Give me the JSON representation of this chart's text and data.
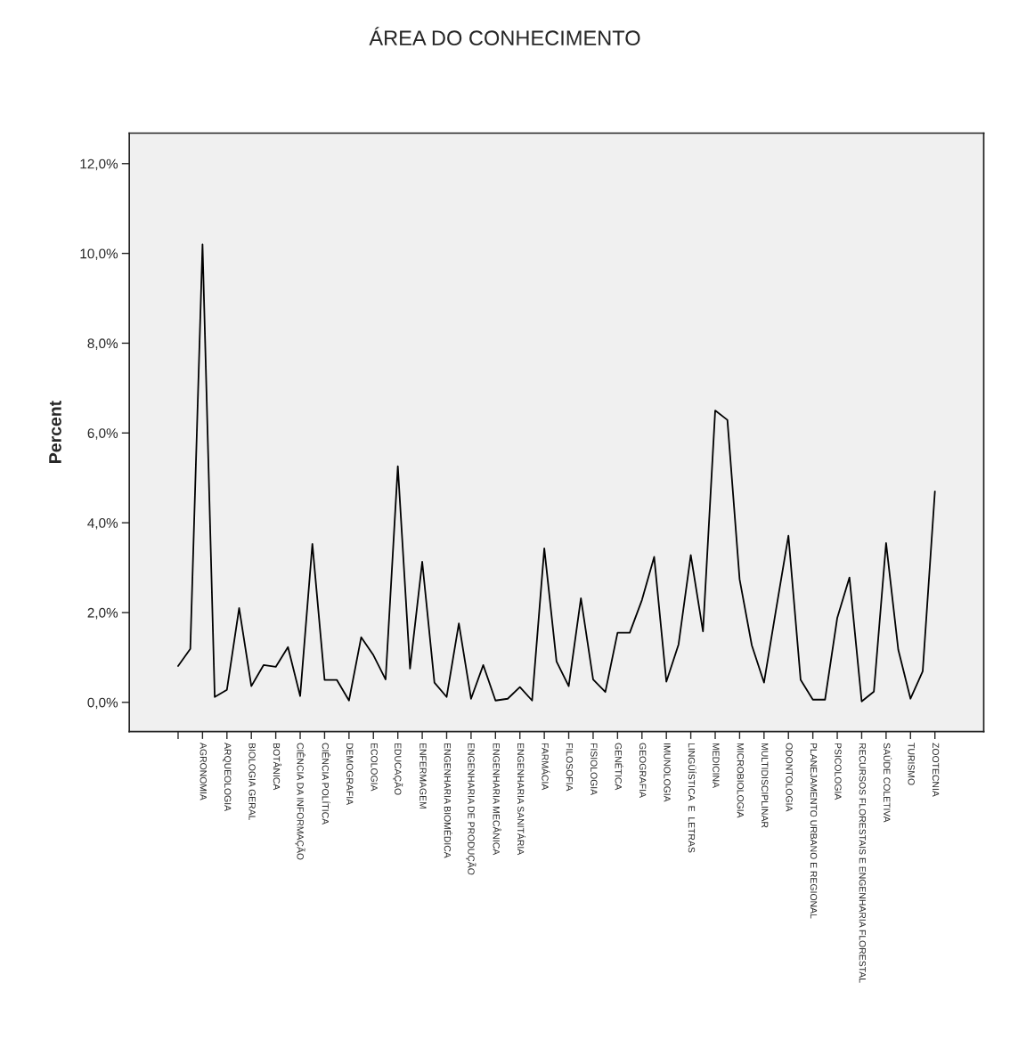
{
  "chart_data": {
    "type": "line",
    "title": "ÁREA DO CONHECIMENTO",
    "ylabel": "Percent",
    "categories": [
      null,
      null,
      "AGRONOMIA",
      null,
      "ARQUEOLOGIA",
      null,
      "BIOLOGIA GERAL",
      null,
      "BOTÂNICA",
      null,
      "CIÊNCIA DA INFORMAÇÃO",
      null,
      "CIÊNCIA POLÍTICA",
      null,
      "DEMOGRAFIA",
      null,
      "ECOLOGIA",
      null,
      "EDUCAÇÃO",
      null,
      "ENFERMAGEM",
      null,
      "ENGENHARIA BIOMÉDICA",
      null,
      "ENGENHARIA DE PRODUÇÃO",
      null,
      "ENGENHARIA MECÂNICA",
      null,
      "ENGENHARIA SANITÁRIA",
      null,
      "FARMÁCIA",
      null,
      "FILOSOFIA",
      null,
      "FISIOLOGIA",
      null,
      "GENÉTICA",
      null,
      "GEOGRAFIA",
      null,
      "IMUNOLOGIA",
      null,
      "LINGÜÍSTICA  E  LETRAS",
      null,
      "MEDICINA",
      null,
      "MICROBIOLOGIA",
      null,
      "MULTIDISCIPLINAR",
      null,
      "ODONTOLOGIA",
      null,
      "PLANEJAMENTO URBANO E REGIONAL",
      null,
      "PSICOLOGIA",
      null,
      "RECURSOS FLORESTAIS E ENGENHARIA FLORESTAL",
      null,
      "SAÚDE COLETIVA",
      null,
      "TURISMO",
      null,
      "ZOOTECNIA"
    ],
    "series": [
      {
        "color": "#000000",
        "values": [
          0.81,
          1.19,
          10.2,
          0.12,
          0.28,
          2.1,
          0.36,
          0.83,
          0.79,
          1.23,
          0.14,
          3.53,
          0.5,
          0.5,
          0.04,
          1.45,
          1.05,
          0.51,
          5.26,
          0.75,
          3.13,
          0.44,
          0.12,
          1.76,
          0.08,
          0.83,
          0.04,
          0.08,
          0.34,
          0.04,
          3.43,
          0.91,
          0.36,
          2.32,
          0.51,
          0.23,
          1.55,
          1.55,
          2.28,
          3.24,
          0.46,
          1.29,
          3.28,
          1.58,
          6.5,
          6.29,
          2.74,
          1.27,
          0.44,
          2.09,
          3.71,
          0.5,
          0.06,
          0.06,
          1.88,
          2.78,
          0.02,
          0.24,
          3.55,
          1.17,
          0.08,
          0.69,
          4.7
        ]
      }
    ],
    "ylim": [
      -0.65,
      12.68
    ],
    "yticks": [
      {
        "value": 0,
        "label": "0,0%"
      },
      {
        "value": 2,
        "label": "2,0%"
      },
      {
        "value": 4,
        "label": "4,0%"
      },
      {
        "value": 6,
        "label": "6,0%"
      },
      {
        "value": 8,
        "label": "8,0%"
      },
      {
        "value": 10,
        "label": "10,0%"
      },
      {
        "value": 12,
        "label": "12,0%"
      }
    ],
    "grid": false,
    "marker": "none",
    "line_style": "solid"
  }
}
